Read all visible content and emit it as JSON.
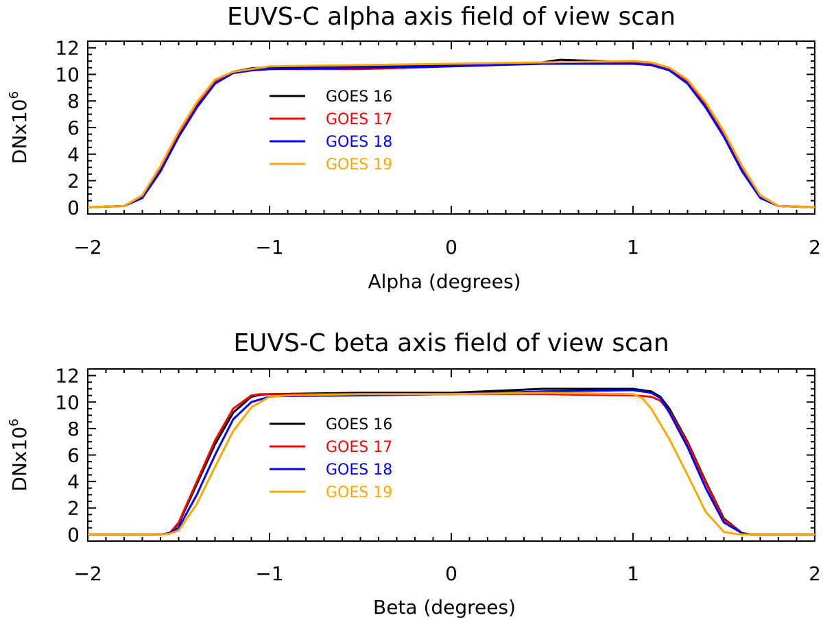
{
  "chart_data": [
    {
      "type": "line",
      "title": "EUVS-C alpha axis field of view scan",
      "xlabel": "Alpha (degrees)",
      "ylabel": "DNx10",
      "ylabel_exponent": "6",
      "xlim": [
        -2,
        2
      ],
      "ylim": [
        -0.5,
        12.5
      ],
      "xticks": [
        "-2",
        "-1",
        "0",
        "1",
        "2"
      ],
      "yticks": [
        "0",
        "2",
        "4",
        "6",
        "8",
        "10",
        "12"
      ],
      "legend_position": "upper-left",
      "series": [
        {
          "name": "GOES 16",
          "color": "#000000",
          "x": [
            -2.0,
            -1.8,
            -1.7,
            -1.6,
            -1.5,
            -1.4,
            -1.3,
            -1.2,
            -1.1,
            -1.0,
            -0.5,
            0.0,
            0.5,
            0.6,
            1.0,
            1.1,
            1.2,
            1.3,
            1.4,
            1.5,
            1.6,
            1.7,
            1.8,
            2.0
          ],
          "y": [
            0,
            0.1,
            0.8,
            2.8,
            5.4,
            7.6,
            9.4,
            10.2,
            10.45,
            10.55,
            10.6,
            10.7,
            10.9,
            11.1,
            10.9,
            10.8,
            10.3,
            9.4,
            7.6,
            5.4,
            2.8,
            0.8,
            0.1,
            0
          ]
        },
        {
          "name": "GOES 17",
          "color": "#ff0000",
          "x": [
            -2.0,
            -1.8,
            -1.7,
            -1.6,
            -1.5,
            -1.4,
            -1.3,
            -1.2,
            -1.1,
            -1.0,
            -0.5,
            0.0,
            0.5,
            1.0,
            1.1,
            1.2,
            1.3,
            1.4,
            1.5,
            1.6,
            1.7,
            1.8,
            2.0
          ],
          "y": [
            0,
            0.1,
            0.9,
            3.0,
            5.6,
            7.8,
            9.5,
            10.1,
            10.3,
            10.4,
            10.4,
            10.6,
            10.9,
            10.9,
            10.8,
            10.4,
            9.5,
            7.8,
            5.6,
            3.0,
            0.9,
            0.1,
            0
          ]
        },
        {
          "name": "GOES 18",
          "color": "#0000ff",
          "x": [
            -2.0,
            -1.8,
            -1.7,
            -1.6,
            -1.5,
            -1.4,
            -1.3,
            -1.2,
            -1.1,
            -1.0,
            -0.5,
            0.0,
            0.5,
            1.0,
            1.1,
            1.2,
            1.3,
            1.4,
            1.5,
            1.6,
            1.7,
            1.8,
            2.0
          ],
          "y": [
            0,
            0.1,
            0.7,
            2.7,
            5.3,
            7.5,
            9.3,
            10.1,
            10.3,
            10.4,
            10.5,
            10.6,
            10.8,
            10.8,
            10.7,
            10.3,
            9.3,
            7.5,
            5.3,
            2.7,
            0.7,
            0.1,
            0
          ]
        },
        {
          "name": "GOES 19",
          "color": "#ffa500",
          "x": [
            -2.0,
            -1.8,
            -1.7,
            -1.6,
            -1.5,
            -1.4,
            -1.3,
            -1.2,
            -1.1,
            -1.0,
            -0.5,
            0.0,
            0.5,
            1.0,
            1.1,
            1.2,
            1.3,
            1.4,
            1.5,
            1.6,
            1.7,
            1.8,
            2.0
          ],
          "y": [
            0,
            0.1,
            0.9,
            3.1,
            5.7,
            7.9,
            9.6,
            10.2,
            10.4,
            10.6,
            10.7,
            10.8,
            10.9,
            11.0,
            10.9,
            10.5,
            9.6,
            7.9,
            5.7,
            3.1,
            0.9,
            0.1,
            0
          ]
        }
      ]
    },
    {
      "type": "line",
      "title": "EUVS-C beta axis field of view scan",
      "xlabel": "Beta (degrees)",
      "ylabel": "DNx10",
      "ylabel_exponent": "6",
      "xlim": [
        -2,
        2
      ],
      "ylim": [
        -0.5,
        12.5
      ],
      "xticks": [
        "-2",
        "-1",
        "0",
        "1",
        "2"
      ],
      "yticks": [
        "0",
        "2",
        "4",
        "6",
        "8",
        "10",
        "12"
      ],
      "legend_position": "upper-left",
      "series": [
        {
          "name": "GOES 16",
          "color": "#000000",
          "x": [
            -2.0,
            -1.6,
            -1.55,
            -1.5,
            -1.4,
            -1.3,
            -1.2,
            -1.1,
            -1.05,
            -1.0,
            -0.5,
            0.0,
            0.5,
            1.0,
            1.1,
            1.15,
            1.2,
            1.3,
            1.4,
            1.5,
            1.6,
            1.65,
            2.0
          ],
          "y": [
            0,
            0,
            0.1,
            0.8,
            3.8,
            6.8,
            9.2,
            10.4,
            10.55,
            10.6,
            10.7,
            10.7,
            11.0,
            11.0,
            10.8,
            10.4,
            9.5,
            7.0,
            4.0,
            1.2,
            0.1,
            0,
            0
          ]
        },
        {
          "name": "GOES 17",
          "color": "#ff0000",
          "x": [
            -2.0,
            -1.6,
            -1.55,
            -1.5,
            -1.4,
            -1.3,
            -1.2,
            -1.1,
            -1.05,
            -1.0,
            -0.5,
            0.0,
            0.5,
            1.0,
            1.1,
            1.15,
            1.2,
            1.3,
            1.4,
            1.5,
            1.6,
            1.65,
            2.0
          ],
          "y": [
            0,
            0,
            0.1,
            0.9,
            4.0,
            7.1,
            9.5,
            10.5,
            10.6,
            10.6,
            10.6,
            10.6,
            10.6,
            10.5,
            10.4,
            10.1,
            9.3,
            6.9,
            3.9,
            1.1,
            0.1,
            0,
            0
          ]
        },
        {
          "name": "GOES 18",
          "color": "#0000ff",
          "x": [
            -2.0,
            -1.6,
            -1.55,
            -1.5,
            -1.4,
            -1.3,
            -1.2,
            -1.1,
            -1.0,
            -0.95,
            -0.5,
            0.0,
            0.5,
            1.0,
            1.1,
            1.15,
            1.2,
            1.3,
            1.4,
            1.5,
            1.6,
            1.65,
            2.0
          ],
          "y": [
            0,
            0,
            0.1,
            0.5,
            3.0,
            6.0,
            8.7,
            10.0,
            10.4,
            10.45,
            10.5,
            10.6,
            10.8,
            10.9,
            10.7,
            10.3,
            9.2,
            6.6,
            3.5,
            0.9,
            0.1,
            0,
            0
          ]
        },
        {
          "name": "GOES 19",
          "color": "#ffa500",
          "x": [
            -2.0,
            -1.6,
            -1.55,
            -1.5,
            -1.4,
            -1.3,
            -1.2,
            -1.1,
            -1.0,
            -0.9,
            -0.5,
            0.0,
            0.5,
            1.0,
            1.05,
            1.1,
            1.2,
            1.3,
            1.4,
            1.5,
            1.58,
            2.0
          ],
          "y": [
            0,
            0,
            0.05,
            0.3,
            2.3,
            5.1,
            7.8,
            9.6,
            10.4,
            10.5,
            10.6,
            10.6,
            10.7,
            10.6,
            10.3,
            9.5,
            7.2,
            4.5,
            1.7,
            0.2,
            0,
            0
          ]
        }
      ]
    }
  ]
}
